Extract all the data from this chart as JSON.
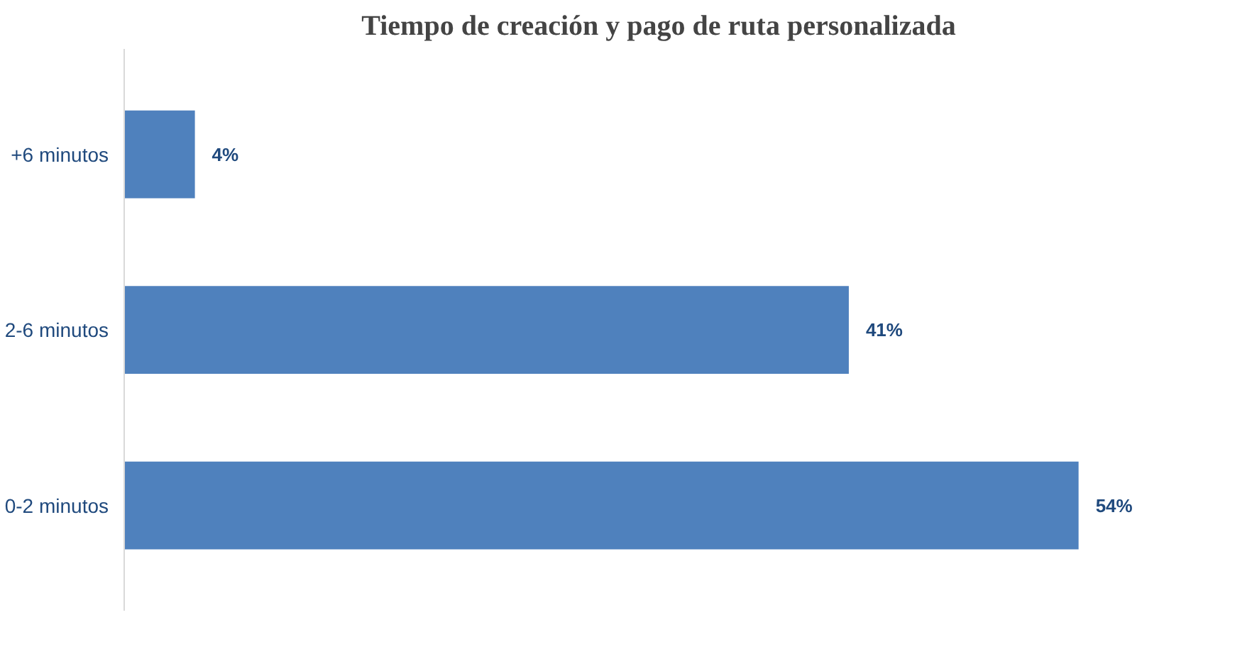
{
  "chart_data": {
    "type": "bar",
    "orientation": "horizontal",
    "title": "Tiempo de creación y pago de ruta personalizada",
    "categories": [
      "+6 minutos",
      "2-6 minutos",
      "0-2 minutos"
    ],
    "values": [
      4,
      41,
      54
    ],
    "value_labels": [
      "4%",
      "41%",
      "54%"
    ],
    "color": "#4f81bd",
    "grid": false
  }
}
